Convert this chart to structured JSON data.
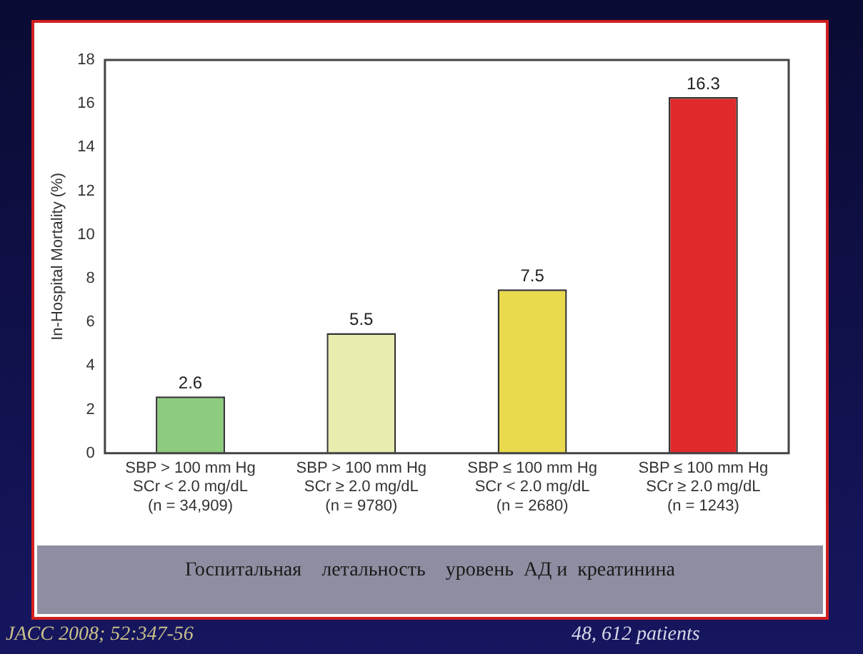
{
  "chart_data": {
    "type": "bar",
    "title": "Госпитальная    летальность    уровень  АД и  креатинина",
    "ylabel": "In-Hospital Mortality (%)",
    "categories": [
      "SBP > 100 mm Hg\nSCr < 2.0 mg/dL\n(n = 34,909)",
      "SBP > 100 mm Hg\nSCr ≥ 2.0 mg/dL\n(n = 9780)",
      "SBP ≤ 100 mm Hg\nSCr < 2.0 mg/dL\n(n = 2680)",
      "SBP ≤ 100 mm Hg\nSCr ≥ 2.0 mg/dL\n(n = 1243)"
    ],
    "values": [
      2.6,
      5.5,
      7.5,
      16.3
    ],
    "colors": [
      "#8dcb7f",
      "#e8ecae",
      "#e9d94c",
      "#e02a2b"
    ],
    "ylim": [
      0,
      18
    ],
    "yticks": [
      0,
      2,
      4,
      6,
      8,
      10,
      12,
      14,
      16,
      18
    ],
    "data_labels": true,
    "grid": false,
    "legend": false,
    "annotations": [
      "JACC 2008; 52:347-56",
      "48, 612 patients"
    ]
  }
}
